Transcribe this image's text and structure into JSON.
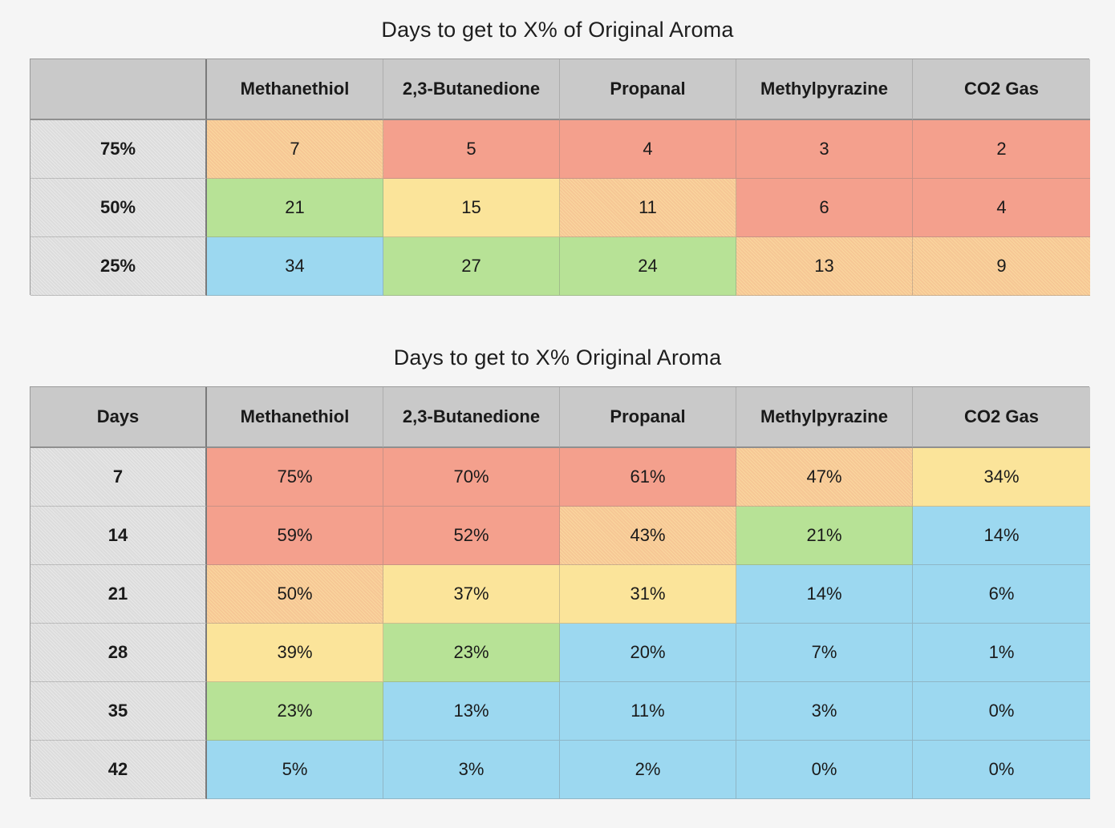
{
  "palette": {
    "red": "#f4a08d",
    "orange": "#f6c795",
    "yellow": "#fbe49a",
    "green": "#b7e296",
    "blue": "#9cd8f0",
    "header_gray": "#c9c9c9"
  },
  "table1": {
    "title": "Days to get to X% of Original Aroma",
    "corner": "",
    "columns": [
      "Methanethiol",
      "2,3-Butanedione",
      "Propanal",
      "Methylpyrazine",
      "CO2 Gas"
    ],
    "rows": [
      {
        "label": "75%",
        "cells": [
          {
            "v": "7",
            "c": "orange"
          },
          {
            "v": "5",
            "c": "red"
          },
          {
            "v": "4",
            "c": "red"
          },
          {
            "v": "3",
            "c": "red"
          },
          {
            "v": "2",
            "c": "red"
          }
        ]
      },
      {
        "label": "50%",
        "cells": [
          {
            "v": "21",
            "c": "green"
          },
          {
            "v": "15",
            "c": "yellow"
          },
          {
            "v": "11",
            "c": "orange"
          },
          {
            "v": "6",
            "c": "red"
          },
          {
            "v": "4",
            "c": "red"
          }
        ]
      },
      {
        "label": "25%",
        "cells": [
          {
            "v": "34",
            "c": "blue"
          },
          {
            "v": "27",
            "c": "green"
          },
          {
            "v": "24",
            "c": "green"
          },
          {
            "v": "13",
            "c": "orange"
          },
          {
            "v": "9",
            "c": "orange"
          }
        ]
      }
    ]
  },
  "table2": {
    "title": "Days to get to X% Original Aroma",
    "corner": "Days",
    "columns": [
      "Methanethiol",
      "2,3-Butanedione",
      "Propanal",
      "Methylpyrazine",
      "CO2 Gas"
    ],
    "rows": [
      {
        "label": "7",
        "cells": [
          {
            "v": "75%",
            "c": "red"
          },
          {
            "v": "70%",
            "c": "red"
          },
          {
            "v": "61%",
            "c": "red"
          },
          {
            "v": "47%",
            "c": "orange"
          },
          {
            "v": "34%",
            "c": "yellow"
          }
        ]
      },
      {
        "label": "14",
        "cells": [
          {
            "v": "59%",
            "c": "red"
          },
          {
            "v": "52%",
            "c": "red"
          },
          {
            "v": "43%",
            "c": "orange"
          },
          {
            "v": "21%",
            "c": "green"
          },
          {
            "v": "14%",
            "c": "blue"
          }
        ]
      },
      {
        "label": "21",
        "cells": [
          {
            "v": "50%",
            "c": "orange"
          },
          {
            "v": "37%",
            "c": "yellow"
          },
          {
            "v": "31%",
            "c": "yellow"
          },
          {
            "v": "14%",
            "c": "blue"
          },
          {
            "v": "6%",
            "c": "blue"
          }
        ]
      },
      {
        "label": "28",
        "cells": [
          {
            "v": "39%",
            "c": "yellow"
          },
          {
            "v": "23%",
            "c": "green"
          },
          {
            "v": "20%",
            "c": "blue"
          },
          {
            "v": "7%",
            "c": "blue"
          },
          {
            "v": "1%",
            "c": "blue"
          }
        ]
      },
      {
        "label": "35",
        "cells": [
          {
            "v": "23%",
            "c": "green"
          },
          {
            "v": "13%",
            "c": "blue"
          },
          {
            "v": "11%",
            "c": "blue"
          },
          {
            "v": "3%",
            "c": "blue"
          },
          {
            "v": "0%",
            "c": "blue"
          }
        ]
      },
      {
        "label": "42",
        "cells": [
          {
            "v": "5%",
            "c": "blue"
          },
          {
            "v": "3%",
            "c": "blue"
          },
          {
            "v": "2%",
            "c": "blue"
          },
          {
            "v": "0%",
            "c": "blue"
          },
          {
            "v": "0%",
            "c": "blue"
          }
        ]
      }
    ]
  }
}
